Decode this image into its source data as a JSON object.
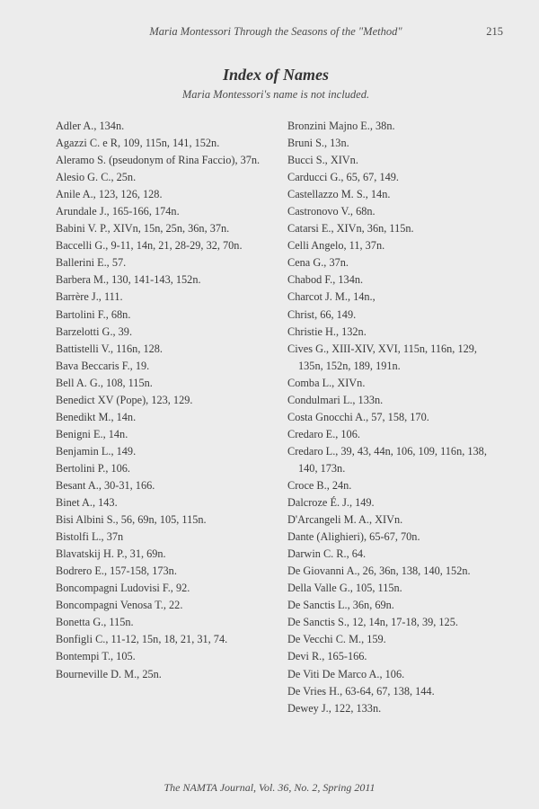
{
  "header": {
    "running_title": "Maria Montessori Through the Seasons of the \"Method\"",
    "page_number": "215"
  },
  "title": "Index of Names",
  "subtitle": "Maria Montessori's name is not included.",
  "columns": {
    "left": [
      "Adler A., 134n.",
      "Agazzi C. e R, 109, 115n, 141, 152n.",
      "Aleramo S. (pseudonym of Rina Faccio), 37n.",
      "Alesio G. C., 25n.",
      "Anile A., 123, 126, 128.",
      "Arundale J., 165-166, 174n.",
      "Babini V. P., XIVn, 15n, 25n, 36n, 37n.",
      "Baccelli G., 9-11, 14n, 21, 28-29, 32, 70n.",
      "Ballerini E., 57.",
      "Barbera M., 130, 141-143, 152n.",
      "Barrère J., 111.",
      "Bartolini F., 68n.",
      "Barzelotti G., 39.",
      "Battistelli V., 116n, 128.",
      "Bava Beccaris F., 19.",
      "Bell A. G., 108, 115n.",
      "Benedict XV (Pope), 123, 129.",
      "Benedikt M., 14n.",
      "Benigni E., 14n.",
      "Benjamin L., 149.",
      "Bertolini P., 106.",
      "Besant A., 30-31, 166.",
      "Binet A., 143.",
      "Bisi Albini S., 56, 69n, 105, 115n.",
      "Bistolfi L., 37n",
      "Blavatskij H. P., 31, 69n.",
      "Bodrero E., 157-158, 173n.",
      "Boncompagni Ludovisi F., 92.",
      "Boncompagni Venosa T., 22.",
      "Bonetta G., 115n.",
      "Bonfigli C., 11-12, 15n, 18, 21, 31, 74.",
      "Bontempi T., 105.",
      "Bourneville D. M., 25n."
    ],
    "right": [
      "Bronzini Majno E., 38n.",
      "Bruni S., 13n.",
      "Bucci S., XIVn.",
      "Carducci G., 65, 67, 149.",
      "Castellazzo M. S., 14n.",
      "Castronovo V., 68n.",
      "Catarsi E., XIVn, 36n, 115n.",
      "Celli Angelo, 11, 37n.",
      "Cena G., 37n.",
      "Chabod F., 134n.",
      "Charcot J. M., 14n.,",
      "Christ, 66, 149.",
      "Christie H., 132n.",
      "Cives G., XIII-XIV, XVI, 115n, 116n, 129, 135n, 152n, 189, 191n.",
      "Comba L., XIVn.",
      "Condulmari L., 133n.",
      "Costa Gnocchi A., 57, 158, 170.",
      "Credaro E., 106.",
      "Credaro L., 39, 43, 44n, 106, 109, 116n, 138, 140, 173n.",
      "Croce B., 24n.",
      "Dalcroze É. J., 149.",
      "D'Arcangeli M. A., XIVn.",
      "Dante (Alighieri), 65-67, 70n.",
      "Darwin C. R., 64.",
      "De Giovanni A., 26, 36n, 138, 140, 152n.",
      "Della Valle G., 105, 115n.",
      "De Sanctis L., 36n, 69n.",
      "De Sanctis S., 12, 14n, 17-18, 39, 125.",
      "De Vecchi C. M., 159.",
      "Devi R., 165-166.",
      "De Viti De Marco A., 106.",
      "De Vries H., 63-64, 67, 138, 144.",
      "Dewey J., 122, 133n."
    ]
  },
  "footer": "The NAMTA Journal, Vol. 36, No. 2, Spring 2011"
}
